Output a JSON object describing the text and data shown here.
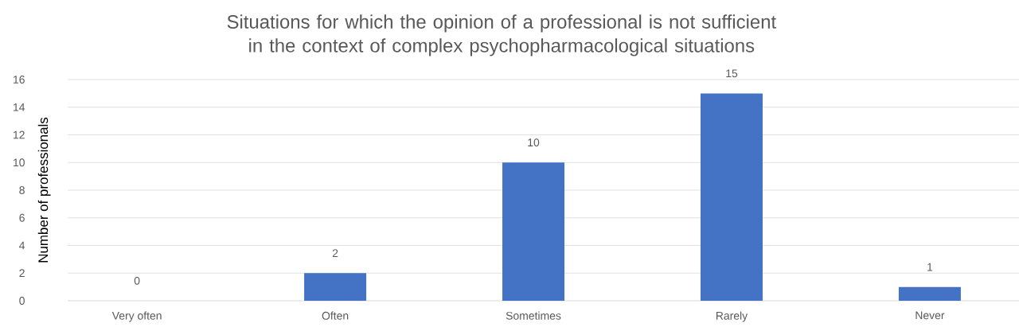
{
  "chart_data": {
    "type": "bar",
    "title": "Situations for which the opinion of a professional is not sufficient in the context of complex psychopharmacological situations",
    "ylabel": "Number of professionals",
    "categories": [
      "Very often",
      "Often",
      "Sometimes",
      "Rarely",
      "Never"
    ],
    "values": [
      0,
      2,
      10,
      15,
      1
    ],
    "color": "#4472c4",
    "ylim": [
      0,
      16
    ],
    "yticks": [
      0,
      2,
      4,
      6,
      8,
      10,
      12,
      14,
      16
    ],
    "grid": "y",
    "data_labels": true
  }
}
